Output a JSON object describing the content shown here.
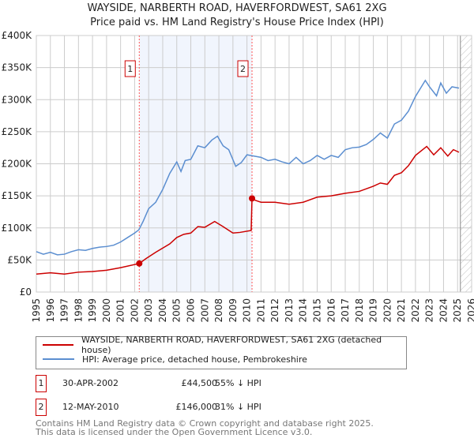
{
  "chart_data": {
    "type": "line",
    "title": "WAYSIDE, NARBERTH ROAD, HAVERFORDWEST, SA61 2XG",
    "subtitle": "Price paid vs. HM Land Registry's House Price Index (HPI)",
    "xlim": [
      1995,
      2026
    ],
    "ylim": [
      0,
      400000
    ],
    "x_ticks": [
      "1995",
      "1996",
      "1997",
      "1998",
      "1999",
      "2000",
      "2001",
      "2002",
      "2003",
      "2004",
      "2005",
      "2006",
      "2007",
      "2008",
      "2009",
      "2010",
      "2011",
      "2012",
      "2013",
      "2014",
      "2015",
      "2016",
      "2017",
      "2018",
      "2019",
      "2020",
      "2021",
      "2022",
      "2023",
      "2024",
      "2025",
      "2026"
    ],
    "y_ticks": [
      {
        "v": 0,
        "label": "£0"
      },
      {
        "v": 50000,
        "label": "£50K"
      },
      {
        "v": 100000,
        "label": "£100K"
      },
      {
        "v": 150000,
        "label": "£150K"
      },
      {
        "v": 200000,
        "label": "£200K"
      },
      {
        "v": 250000,
        "label": "£250K"
      },
      {
        "v": 300000,
        "label": "£300K"
      },
      {
        "v": 350000,
        "label": "£350K"
      },
      {
        "v": 400000,
        "label": "£400K"
      }
    ],
    "grid": true,
    "series": [
      {
        "name": "WAYSIDE, NARBERTH ROAD, HAVERFORDWEST, SA61 2XG (detached house)",
        "color": "#cc0000",
        "x": [
          1995,
          1996,
          1997,
          1998,
          1999,
          2000,
          2001,
          2002.33,
          2002.8,
          2003.5,
          2004.5,
          2005,
          2005.5,
          2006,
          2006.5,
          2007,
          2007.7,
          2008.3,
          2009,
          2009.5,
          2010.3,
          2010.36,
          2010.6,
          2011,
          2012,
          2013,
          2014,
          2015,
          2016,
          2017,
          2018,
          2019,
          2019.5,
          2020,
          2020.5,
          2021,
          2021.5,
          2022,
          2022.8,
          2023.3,
          2023.8,
          2024.3,
          2024.7,
          2025.1
        ],
        "y": [
          28000,
          30000,
          28000,
          31000,
          32000,
          34000,
          38000,
          44500,
          52000,
          62000,
          75000,
          85000,
          90000,
          92000,
          102000,
          101000,
          110000,
          102000,
          92000,
          93000,
          96000,
          146000,
          143000,
          140000,
          140000,
          137000,
          140000,
          148000,
          150000,
          154000,
          157000,
          165000,
          170000,
          168000,
          182000,
          186000,
          197000,
          213000,
          227000,
          214000,
          225000,
          212000,
          222000,
          218000
        ]
      },
      {
        "name": "HPI: Average price, detached house, Pembrokeshire",
        "color": "#5b8ed0",
        "x": [
          1995,
          1995.5,
          1996,
          1996.5,
          1997,
          1997.5,
          1998,
          1998.5,
          1999,
          1999.5,
          2000,
          2000.5,
          2001,
          2001.5,
          2002,
          2002.3,
          2002.6,
          2003,
          2003.5,
          2004,
          2004.5,
          2005,
          2005.3,
          2005.6,
          2006,
          2006.5,
          2007,
          2007.5,
          2007.9,
          2008.3,
          2008.7,
          2009.2,
          2009.6,
          2010,
          2010.5,
          2011,
          2011.5,
          2012,
          2012.5,
          2013,
          2013.5,
          2014,
          2014.5,
          2015,
          2015.5,
          2016,
          2016.5,
          2017,
          2017.5,
          2018,
          2018.5,
          2019,
          2019.5,
          2020,
          2020.5,
          2021,
          2021.5,
          2022,
          2022.7,
          2023,
          2023.5,
          2023.8,
          2024.2,
          2024.6,
          2025.1
        ],
        "y": [
          63000,
          59000,
          62000,
          58000,
          59000,
          63000,
          66000,
          65000,
          68000,
          70000,
          71000,
          73000,
          78000,
          85000,
          92000,
          97000,
          110000,
          130000,
          140000,
          160000,
          185000,
          203000,
          188000,
          205000,
          207000,
          228000,
          225000,
          237000,
          243000,
          228000,
          222000,
          196000,
          202000,
          214000,
          212000,
          210000,
          205000,
          207000,
          203000,
          200000,
          210000,
          200000,
          205000,
          213000,
          207000,
          213000,
          210000,
          222000,
          225000,
          226000,
          230000,
          238000,
          248000,
          240000,
          262000,
          268000,
          282000,
          305000,
          330000,
          320000,
          306000,
          326000,
          310000,
          320000,
          318000
        ]
      }
    ],
    "annotations": [
      {
        "label": "1",
        "x": 2002.33,
        "y": 44500
      },
      {
        "label": "2",
        "x": 2010.36,
        "y": 146000
      }
    ],
    "shaded_range": [
      2002.33,
      2010.36
    ],
    "hatched_from": 2025.2
  },
  "legend": {
    "red": "WAYSIDE, NARBERTH ROAD, HAVERFORDWEST, SA61 2XG (detached house)",
    "blue": "HPI: Average price, detached house, Pembrokeshire"
  },
  "transactions": [
    {
      "num": "1",
      "date": "30-APR-2002",
      "price": "£44,500",
      "hpi": "55% ↓ HPI"
    },
    {
      "num": "2",
      "date": "12-MAY-2010",
      "price": "£146,000",
      "hpi": "31% ↓ HPI"
    }
  ],
  "footer": [
    "Contains HM Land Registry data © Crown copyright and database right 2025.",
    "This data is licensed under the Open Government Licence v3.0."
  ]
}
